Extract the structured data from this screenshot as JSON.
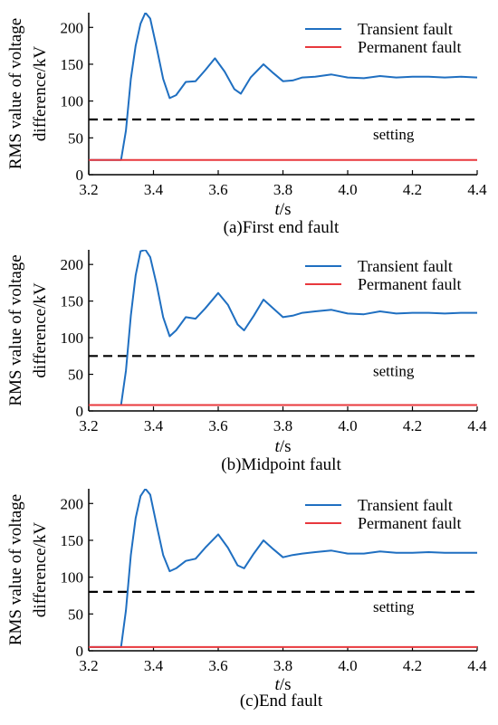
{
  "chart_data": [
    {
      "type": "line",
      "caption": "(a)First end fault",
      "ylabel_line1": "RMS value of voltage",
      "ylabel_line2": "difference/kV",
      "xlabel_italic": "t",
      "xlabel_unit": "/s",
      "xlim": [
        3.2,
        4.4
      ],
      "ylim": [
        0,
        220
      ],
      "xticks": [
        "3.2",
        "3.4",
        "3.6",
        "3.8",
        "4.0",
        "4.2",
        "4.4"
      ],
      "yticks": [
        "0",
        "50",
        "100",
        "150",
        "200"
      ],
      "legend_position": "top-right",
      "colors": {
        "transient": "#1f6fc1",
        "permanent": "#e8383d",
        "setting": "#000000"
      },
      "series": [
        {
          "name": "Transient fault",
          "color": "#1f6fc1",
          "style": "solid",
          "x": [
            3.2,
            3.3,
            3.315,
            3.33,
            3.345,
            3.36,
            3.375,
            3.39,
            3.41,
            3.43,
            3.45,
            3.47,
            3.5,
            3.53,
            3.56,
            3.59,
            3.62,
            3.65,
            3.67,
            3.7,
            3.74,
            3.77,
            3.8,
            3.83,
            3.86,
            3.9,
            3.95,
            4.0,
            4.05,
            4.1,
            4.15,
            4.2,
            4.25,
            4.3,
            4.35,
            4.4
          ],
          "y": [
            20,
            20,
            60,
            130,
            175,
            205,
            220,
            212,
            172,
            130,
            104,
            108,
            126,
            127,
            142,
            158,
            140,
            116,
            110,
            132,
            150,
            138,
            127,
            128,
            132,
            133,
            136,
            132,
            131,
            134,
            132,
            133,
            133,
            132,
            133,
            132
          ]
        },
        {
          "name": "Permanent fault",
          "color": "#e8383d",
          "style": "solid",
          "x": [
            3.2,
            4.4
          ],
          "y": [
            20,
            20
          ]
        }
      ],
      "setting": {
        "label": "setting",
        "value": 75
      }
    },
    {
      "type": "line",
      "caption": "(b)Midpoint fault",
      "ylabel_line1": "RMS value of voltage",
      "ylabel_line2": "difference/kV",
      "xlabel_italic": "t",
      "xlabel_unit": "/s",
      "xlim": [
        3.2,
        4.4
      ],
      "ylim": [
        0,
        220
      ],
      "xticks": [
        "3.2",
        "3.4",
        "3.6",
        "3.8",
        "4.0",
        "4.2",
        "4.4"
      ],
      "yticks": [
        "0",
        "50",
        "100",
        "150",
        "200"
      ],
      "legend_position": "top-right",
      "colors": {
        "transient": "#1f6fc1",
        "permanent": "#e8383d",
        "setting": "#000000"
      },
      "series": [
        {
          "name": "Transient fault",
          "color": "#1f6fc1",
          "style": "solid",
          "x": [
            3.2,
            3.3,
            3.315,
            3.33,
            3.345,
            3.36,
            3.375,
            3.39,
            3.41,
            3.43,
            3.45,
            3.47,
            3.5,
            3.53,
            3.56,
            3.6,
            3.63,
            3.66,
            3.68,
            3.71,
            3.74,
            3.77,
            3.8,
            3.83,
            3.86,
            3.9,
            3.95,
            4.0,
            4.05,
            4.1,
            4.15,
            4.2,
            4.25,
            4.3,
            4.35,
            4.4
          ],
          "y": [
            8,
            8,
            55,
            130,
            185,
            218,
            220,
            210,
            172,
            128,
            102,
            110,
            128,
            126,
            140,
            161,
            145,
            118,
            110,
            130,
            152,
            140,
            128,
            130,
            134,
            136,
            138,
            133,
            132,
            136,
            133,
            134,
            134,
            133,
            134,
            134
          ]
        },
        {
          "name": "Permanent fault",
          "color": "#e8383d",
          "style": "solid",
          "x": [
            3.2,
            4.4
          ],
          "y": [
            8,
            8
          ]
        }
      ],
      "setting": {
        "label": "setting",
        "value": 75
      }
    },
    {
      "type": "line",
      "caption": "(c)End fault",
      "ylabel_line1": "RMS value of voltage",
      "ylabel_line2": "difference/kV",
      "xlabel_italic": "t",
      "xlabel_unit": "/s",
      "xlim": [
        3.2,
        4.4
      ],
      "ylim": [
        0,
        220
      ],
      "xticks": [
        "3.2",
        "3.4",
        "3.6",
        "3.8",
        "4.0",
        "4.2",
        "4.4"
      ],
      "yticks": [
        "0",
        "50",
        "100",
        "150",
        "200"
      ],
      "legend_position": "top-right",
      "colors": {
        "transient": "#1f6fc1",
        "permanent": "#e8383d",
        "setting": "#000000"
      },
      "series": [
        {
          "name": "Transient fault",
          "color": "#1f6fc1",
          "style": "solid",
          "x": [
            3.2,
            3.3,
            3.315,
            3.33,
            3.345,
            3.36,
            3.375,
            3.39,
            3.41,
            3.43,
            3.45,
            3.47,
            3.5,
            3.53,
            3.56,
            3.6,
            3.63,
            3.66,
            3.68,
            3.71,
            3.74,
            3.77,
            3.8,
            3.83,
            3.86,
            3.9,
            3.95,
            4.0,
            4.05,
            4.1,
            4.15,
            4.2,
            4.25,
            4.3,
            4.35,
            4.4
          ],
          "y": [
            5,
            5,
            55,
            130,
            180,
            210,
            220,
            212,
            170,
            130,
            108,
            112,
            122,
            125,
            140,
            158,
            140,
            116,
            112,
            132,
            150,
            138,
            127,
            130,
            132,
            134,
            136,
            132,
            132,
            135,
            133,
            133,
            134,
            133,
            133,
            133
          ]
        },
        {
          "name": "Permanent fault",
          "color": "#e8383d",
          "style": "solid",
          "x": [
            3.2,
            4.4
          ],
          "y": [
            5,
            5
          ]
        }
      ],
      "setting": {
        "label": "setting",
        "value": 80
      }
    }
  ]
}
